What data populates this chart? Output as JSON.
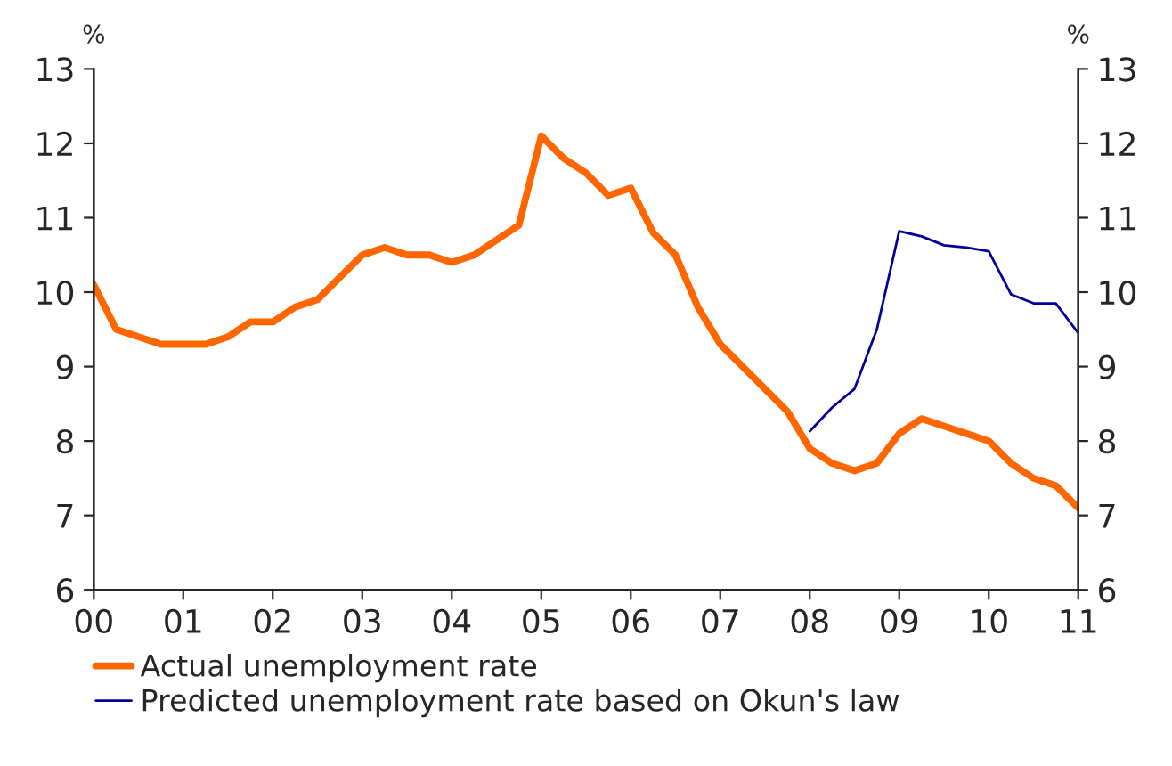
{
  "chart_data": {
    "type": "line",
    "ylabel": "%",
    "y2label": "%",
    "x": [
      2000,
      2000.25,
      2000.5,
      2000.75,
      2001,
      2001.25,
      2001.5,
      2001.75,
      2002,
      2002.25,
      2002.5,
      2002.75,
      2003,
      2003.25,
      2003.5,
      2003.75,
      2004,
      2004.25,
      2004.5,
      2004.75,
      2005,
      2005.25,
      2005.5,
      2005.75,
      2006,
      2006.25,
      2006.5,
      2006.75,
      2007,
      2007.25,
      2007.5,
      2007.75,
      2008,
      2008.25,
      2008.5,
      2008.75,
      2009,
      2009.25,
      2009.5,
      2009.75,
      2010,
      2010.25,
      2010.5,
      2010.75,
      2011
    ],
    "series": [
      {
        "name": "Actual unemployment rate",
        "color": "#ff6600",
        "values": [
          10.1,
          9.5,
          9.4,
          9.3,
          9.3,
          9.3,
          9.4,
          9.6,
          9.6,
          9.8,
          9.9,
          10.2,
          10.5,
          10.6,
          10.5,
          10.5,
          10.4,
          10.5,
          10.7,
          10.9,
          12.1,
          11.8,
          11.6,
          11.3,
          11.4,
          10.8,
          10.5,
          9.8,
          9.3,
          9.0,
          8.7,
          8.4,
          7.9,
          7.7,
          7.6,
          7.7,
          8.1,
          8.3,
          8.2,
          8.1,
          8.0,
          7.7,
          7.5,
          7.4,
          7.1
        ]
      },
      {
        "name": "Predicted unemployment rate based on Okun's law",
        "color": "#000099",
        "x": [
          2008,
          2008.25,
          2008.5,
          2008.75,
          2009,
          2009.25,
          2009.5,
          2009.75,
          2010,
          2010.25,
          2010.5,
          2010.75,
          2011
        ],
        "values": [
          8.13,
          8.45,
          8.7,
          9.5,
          10.82,
          10.75,
          10.63,
          10.6,
          10.55,
          9.97,
          9.85,
          9.85,
          9.45
        ]
      }
    ],
    "xlim": [
      2000,
      2011
    ],
    "xticks": [
      {
        "value": 2000,
        "label": "00"
      },
      {
        "value": 2001,
        "label": "01"
      },
      {
        "value": 2002,
        "label": "02"
      },
      {
        "value": 2003,
        "label": "03"
      },
      {
        "value": 2004,
        "label": "04"
      },
      {
        "value": 2005,
        "label": "05"
      },
      {
        "value": 2006,
        "label": "06"
      },
      {
        "value": 2007,
        "label": "07"
      },
      {
        "value": 2008,
        "label": "08"
      },
      {
        "value": 2009,
        "label": "09"
      },
      {
        "value": 2010,
        "label": "10"
      },
      {
        "value": 2011,
        "label": "11"
      }
    ],
    "ylim": [
      6,
      13
    ],
    "yticks": [
      6,
      7,
      8,
      9,
      10,
      11,
      12,
      13
    ],
    "y2lim": [
      6,
      13
    ],
    "y2ticks": [
      6,
      7,
      8,
      9,
      10,
      11,
      12,
      13
    ],
    "grid": false,
    "legend": "bottom left",
    "line_style": "solid",
    "marker": "none"
  }
}
